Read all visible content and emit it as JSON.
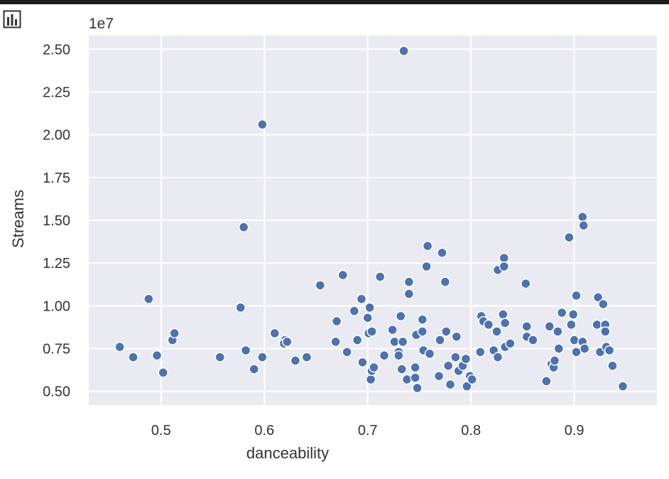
{
  "colors": {
    "plot_bg": "#eaeaf2",
    "grid": "#ffffff",
    "marker": "#4c72b0",
    "marker_edge": "#ffffff",
    "topbar": "#1e1e1e"
  },
  "toolbar": {
    "icon": "bar-chart-icon"
  },
  "chart_data": {
    "type": "scatter",
    "xlabel": "danceability",
    "ylabel": "Streams",
    "y_offset_label": "1e7",
    "xlim": [
      0.43,
      0.98
    ],
    "ylim": [
      0.42,
      2.58
    ],
    "xticks": [
      0.5,
      0.6,
      0.7,
      0.8,
      0.9
    ],
    "xtick_labels": [
      "0.5",
      "0.6",
      "0.7",
      "0.8",
      "0.9"
    ],
    "yticks": [
      0.5,
      0.75,
      1.0,
      1.25,
      1.5,
      1.75,
      2.0,
      2.25,
      2.5
    ],
    "ytick_labels": [
      "0.50",
      "0.75",
      "1.00",
      "1.25",
      "1.50",
      "1.75",
      "2.00",
      "2.25",
      "2.50"
    ],
    "grid": true,
    "points": [
      [
        0.735,
        2.49
      ],
      [
        0.598,
        2.06
      ],
      [
        0.58,
        1.46
      ],
      [
        0.577,
        0.99
      ],
      [
        0.908,
        1.52
      ],
      [
        0.909,
        1.47
      ],
      [
        0.895,
        1.4
      ],
      [
        0.758,
        1.35
      ],
      [
        0.772,
        1.31
      ],
      [
        0.757,
        1.23
      ],
      [
        0.775,
        1.14
      ],
      [
        0.832,
        1.28
      ],
      [
        0.826,
        1.21
      ],
      [
        0.832,
        1.23
      ],
      [
        0.853,
        1.13
      ],
      [
        0.676,
        1.18
      ],
      [
        0.654,
        1.12
      ],
      [
        0.712,
        1.17
      ],
      [
        0.74,
        1.14
      ],
      [
        0.74,
        1.07
      ],
      [
        0.488,
        1.04
      ],
      [
        0.694,
        1.04
      ],
      [
        0.702,
        0.99
      ],
      [
        0.687,
        0.97
      ],
      [
        0.67,
        0.91
      ],
      [
        0.7,
        0.93
      ],
      [
        0.732,
        0.94
      ],
      [
        0.753,
        0.92
      ],
      [
        0.786,
        0.82
      ],
      [
        0.902,
        1.06
      ],
      [
        0.923,
        1.05
      ],
      [
        0.928,
        1.01
      ],
      [
        0.888,
        0.96
      ],
      [
        0.899,
        0.95
      ],
      [
        0.81,
        0.94
      ],
      [
        0.831,
        0.95
      ],
      [
        0.812,
        0.91
      ],
      [
        0.817,
        0.89
      ],
      [
        0.833,
        0.9
      ],
      [
        0.825,
        0.85
      ],
      [
        0.854,
        0.88
      ],
      [
        0.876,
        0.88
      ],
      [
        0.897,
        0.89
      ],
      [
        0.922,
        0.89
      ],
      [
        0.93,
        0.89
      ],
      [
        0.93,
        0.85
      ],
      [
        0.884,
        0.85
      ],
      [
        0.9,
        0.8
      ],
      [
        0.908,
        0.79
      ],
      [
        0.854,
        0.82
      ],
      [
        0.86,
        0.8
      ],
      [
        0.46,
        0.76
      ],
      [
        0.473,
        0.7
      ],
      [
        0.496,
        0.71
      ],
      [
        0.502,
        0.61
      ],
      [
        0.511,
        0.8
      ],
      [
        0.513,
        0.84
      ],
      [
        0.557,
        0.7
      ],
      [
        0.582,
        0.74
      ],
      [
        0.59,
        0.63
      ],
      [
        0.598,
        0.7
      ],
      [
        0.61,
        0.84
      ],
      [
        0.62,
        0.8
      ],
      [
        0.619,
        0.78
      ],
      [
        0.622,
        0.79
      ],
      [
        0.63,
        0.68
      ],
      [
        0.641,
        0.7
      ],
      [
        0.669,
        0.79
      ],
      [
        0.68,
        0.73
      ],
      [
        0.69,
        0.8
      ],
      [
        0.695,
        0.67
      ],
      [
        0.701,
        0.84
      ],
      [
        0.704,
        0.85
      ],
      [
        0.703,
        0.57
      ],
      [
        0.704,
        0.62
      ],
      [
        0.706,
        0.64
      ],
      [
        0.716,
        0.71
      ],
      [
        0.724,
        0.86
      ],
      [
        0.726,
        0.79
      ],
      [
        0.73,
        0.73
      ],
      [
        0.73,
        0.71
      ],
      [
        0.733,
        0.63
      ],
      [
        0.734,
        0.79
      ],
      [
        0.738,
        0.57
      ],
      [
        0.746,
        0.64
      ],
      [
        0.746,
        0.58
      ],
      [
        0.748,
        0.52
      ],
      [
        0.747,
        0.83
      ],
      [
        0.753,
        0.85
      ],
      [
        0.754,
        0.74
      ],
      [
        0.76,
        0.72
      ],
      [
        0.769,
        0.59
      ],
      [
        0.77,
        0.8
      ],
      [
        0.776,
        0.85
      ],
      [
        0.778,
        0.65
      ],
      [
        0.78,
        0.54
      ],
      [
        0.785,
        0.7
      ],
      [
        0.788,
        0.62
      ],
      [
        0.792,
        0.65
      ],
      [
        0.795,
        0.69
      ],
      [
        0.796,
        0.53
      ],
      [
        0.799,
        0.59
      ],
      [
        0.801,
        0.57
      ],
      [
        0.809,
        0.73
      ],
      [
        0.822,
        0.74
      ],
      [
        0.826,
        0.7
      ],
      [
        0.833,
        0.76
      ],
      [
        0.838,
        0.78
      ],
      [
        0.873,
        0.56
      ],
      [
        0.878,
        0.66
      ],
      [
        0.88,
        0.64
      ],
      [
        0.881,
        0.68
      ],
      [
        0.885,
        0.75
      ],
      [
        0.902,
        0.73
      ],
      [
        0.91,
        0.75
      ],
      [
        0.925,
        0.73
      ],
      [
        0.931,
        0.76
      ],
      [
        0.934,
        0.74
      ],
      [
        0.937,
        0.65
      ],
      [
        0.947,
        0.53
      ]
    ]
  }
}
